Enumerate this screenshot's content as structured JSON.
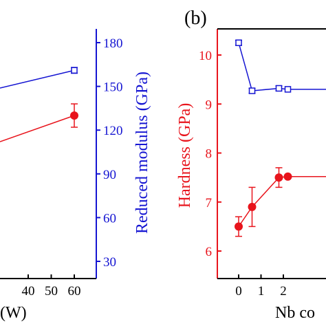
{
  "colors": {
    "red": "#e8141c",
    "blue": "#1414d2",
    "axis": "#000000",
    "background": "#ffffff"
  },
  "chart_data": [
    {
      "panel": "a",
      "type": "line",
      "xlabel": "(W)",
      "y2label": "Reduced modulus (GPa)",
      "x_ticks": [
        40,
        50,
        60
      ],
      "y2_ticks": [
        30,
        60,
        90,
        120,
        150,
        180
      ],
      "series": [
        {
          "axis": "left",
          "color": "#e8141c",
          "marker": "filled-circle",
          "points": [
            {
              "x": 60,
              "y": 130,
              "err": 8
            }
          ]
        },
        {
          "axis": "right",
          "color": "#1414d2",
          "marker": "open-square",
          "points": [
            {
              "x": 60,
              "y": 161,
              "err": 2
            }
          ]
        }
      ]
    },
    {
      "panel": "b",
      "type": "line",
      "panel_label": "(b)",
      "xlabel": "Nb co",
      "ylabel": "Hardness (GPa)",
      "x_ticks": [
        0,
        1,
        2
      ],
      "y_ticks": [
        6,
        7,
        8,
        9,
        10
      ],
      "series": [
        {
          "axis": "left",
          "color": "#e8141c",
          "marker": "filled-circle",
          "points": [
            {
              "x": 0,
              "y": 6.5,
              "err": 0.2
            },
            {
              "x": 0.6,
              "y": 6.9,
              "err": 0.4
            },
            {
              "x": 1.8,
              "y": 7.5,
              "err": 0.2
            },
            {
              "x": 2.2,
              "y": 7.52,
              "err": 0.0
            }
          ]
        },
        {
          "axis": "right",
          "color": "#1414d2",
          "marker": "open-square",
          "points": [
            {
              "x": 0,
              "y": 10.25,
              "err": 0.05
            },
            {
              "x": 0.6,
              "y": 9.27,
              "err": 0.05
            },
            {
              "x": 1.8,
              "y": 9.32,
              "err": 0.05
            },
            {
              "x": 2.2,
              "y": 9.3,
              "err": 0.0
            }
          ]
        }
      ]
    }
  ]
}
